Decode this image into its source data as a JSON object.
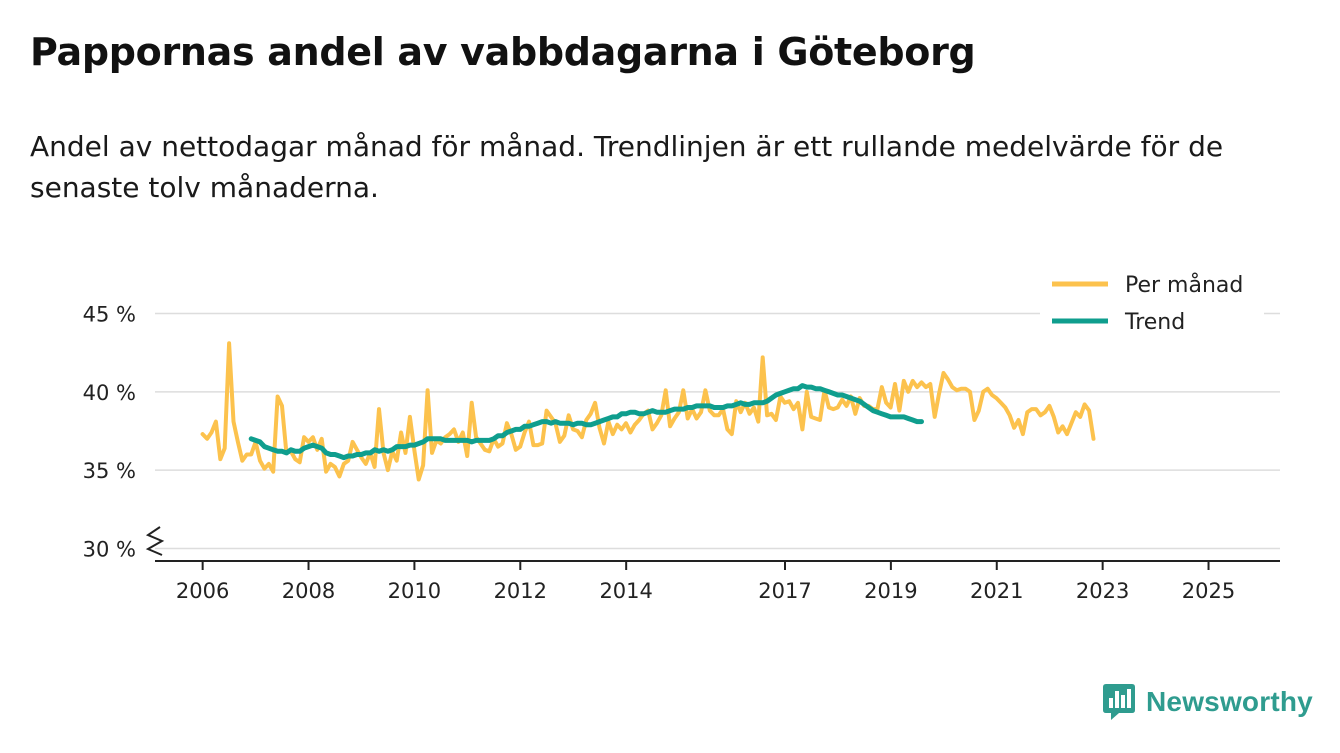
{
  "title": "Pappornas andel av vabbdagarna i Göteborg",
  "subtitle": "Andel av nettodagar månad för månad. Trendlinjen är ett rullande medelvärde för de senaste tolv månaderna.",
  "brand": "Newsworthy",
  "colors": {
    "monthly": "#fcc24d",
    "trend": "#0f9e8e",
    "grid": "#dddddd",
    "axis": "#222222",
    "brand": "#2f9c8f"
  },
  "chart_data": {
    "type": "line",
    "ylim": [
      29.2,
      46.5
    ],
    "y_ticks": [
      30,
      35,
      40,
      45
    ],
    "y_tick_labels": [
      "30 %",
      "35 %",
      "40 %",
      "45 %"
    ],
    "x_ticks": [
      2006,
      2008,
      2010,
      2012,
      2014,
      2017,
      2019,
      2021,
      2023,
      2025
    ],
    "x_tick_labels": [
      "2006",
      "2008",
      "2010",
      "2012",
      "2014",
      "2017",
      "2019",
      "2021",
      "2023",
      "2025"
    ],
    "xlim": [
      2005.1,
      2026.35
    ],
    "axis_break": true,
    "grid": true,
    "legend_position": "top-right",
    "series": [
      {
        "name": "Per månad",
        "x_start": 2006.0,
        "step": 0.0833,
        "values": [
          37.3,
          37.0,
          37.4,
          38.1,
          35.7,
          36.4,
          43.1,
          38.1,
          36.8,
          35.6,
          36.0,
          36.0,
          36.8,
          35.6,
          35.1,
          35.4,
          34.9,
          39.7,
          39.1,
          36.1,
          36.2,
          35.7,
          35.5,
          37.1,
          36.8,
          37.1,
          36.3,
          37.0,
          34.9,
          35.4,
          35.2,
          34.6,
          35.4,
          35.6,
          36.8,
          36.3,
          35.8,
          35.4,
          36.1,
          35.2,
          38.9,
          36.1,
          35.0,
          36.2,
          35.6,
          37.4,
          36.1,
          38.4,
          36.3,
          34.4,
          35.3,
          40.1,
          36.1,
          36.9,
          36.7,
          37.1,
          37.3,
          37.6,
          36.8,
          37.4,
          35.9,
          39.3,
          37.1,
          36.7,
          36.3,
          36.2,
          37.0,
          36.5,
          36.7,
          38.0,
          37.3,
          36.3,
          36.5,
          37.4,
          38.1,
          36.6,
          36.6,
          36.7,
          38.8,
          38.4,
          38.0,
          36.8,
          37.2,
          38.5,
          37.6,
          37.5,
          37.1,
          38.2,
          38.6,
          39.3,
          37.7,
          36.7,
          38.1,
          37.3,
          37.9,
          37.6,
          38.0,
          37.4,
          37.9,
          38.2,
          38.6,
          38.8,
          37.6,
          38.0,
          38.5,
          40.1,
          37.8,
          38.3,
          38.7,
          40.1,
          38.3,
          38.9,
          38.3,
          38.7,
          40.1,
          38.8,
          38.5,
          38.5,
          38.9,
          37.6,
          37.3,
          39.4,
          38.7,
          39.3,
          38.6,
          39.0,
          38.1,
          42.2,
          38.5,
          38.6,
          38.2,
          39.7,
          39.3,
          39.4,
          38.9,
          39.3,
          37.6,
          40.0,
          38.4,
          38.3,
          38.2,
          40.1,
          39.0,
          38.9,
          39.0,
          39.5,
          39.1,
          39.7,
          38.6,
          39.6,
          39.1,
          39.1,
          38.9,
          38.9,
          40.3,
          39.3,
          39.0,
          40.5,
          38.8,
          40.7,
          40.0,
          40.7,
          40.3,
          40.6,
          40.3,
          40.5,
          38.4,
          39.9,
          41.2,
          40.8,
          40.3,
          40.1,
          40.2,
          40.2,
          40.0,
          38.2,
          38.8,
          40.0,
          40.2,
          39.8,
          39.6,
          39.3,
          39.0,
          38.5,
          37.7,
          38.2,
          37.3,
          38.7,
          38.9,
          38.9,
          38.5,
          38.7,
          39.1,
          38.4,
          37.4,
          37.8,
          37.3,
          38.0,
          38.7,
          38.4,
          39.2,
          38.8,
          37.0
        ]
      },
      {
        "name": "Trend",
        "x_start": 2006.917,
        "step": 0.0833,
        "values": [
          37.0,
          36.9,
          36.8,
          36.5,
          36.4,
          36.3,
          36.2,
          36.2,
          36.1,
          36.3,
          36.2,
          36.2,
          36.4,
          36.5,
          36.6,
          36.5,
          36.4,
          36.1,
          36.0,
          36.0,
          35.9,
          35.8,
          35.9,
          35.9,
          36.0,
          36.0,
          36.1,
          36.1,
          36.3,
          36.2,
          36.3,
          36.2,
          36.3,
          36.5,
          36.5,
          36.5,
          36.6,
          36.6,
          36.7,
          36.8,
          37.0,
          37.0,
          37.0,
          37.0,
          36.9,
          36.9,
          36.9,
          36.9,
          36.9,
          36.9,
          36.8,
          36.9,
          36.9,
          36.9,
          36.9,
          37.0,
          37.2,
          37.2,
          37.4,
          37.5,
          37.6,
          37.6,
          37.8,
          37.8,
          37.9,
          38.0,
          38.1,
          38.1,
          38.0,
          38.1,
          38.0,
          38.0,
          38.0,
          37.9,
          38.0,
          38.0,
          37.9,
          37.9,
          38.0,
          38.1,
          38.2,
          38.3,
          38.4,
          38.4,
          38.6,
          38.6,
          38.7,
          38.7,
          38.6,
          38.6,
          38.7,
          38.8,
          38.7,
          38.7,
          38.7,
          38.8,
          38.9,
          38.9,
          38.9,
          39.0,
          39.0,
          39.1,
          39.1,
          39.1,
          39.1,
          39.0,
          39.0,
          39.0,
          39.1,
          39.1,
          39.2,
          39.3,
          39.2,
          39.2,
          39.3,
          39.3,
          39.3,
          39.4,
          39.6,
          39.8,
          39.9,
          40.0,
          40.1,
          40.2,
          40.2,
          40.4,
          40.3,
          40.3,
          40.2,
          40.2,
          40.1,
          40.0,
          39.9,
          39.8,
          39.8,
          39.7,
          39.6,
          39.5,
          39.4,
          39.2,
          39.0,
          38.8,
          38.7,
          38.6,
          38.5,
          38.4,
          38.4,
          38.4,
          38.4,
          38.3,
          38.2,
          38.1,
          38.1
        ]
      }
    ]
  }
}
